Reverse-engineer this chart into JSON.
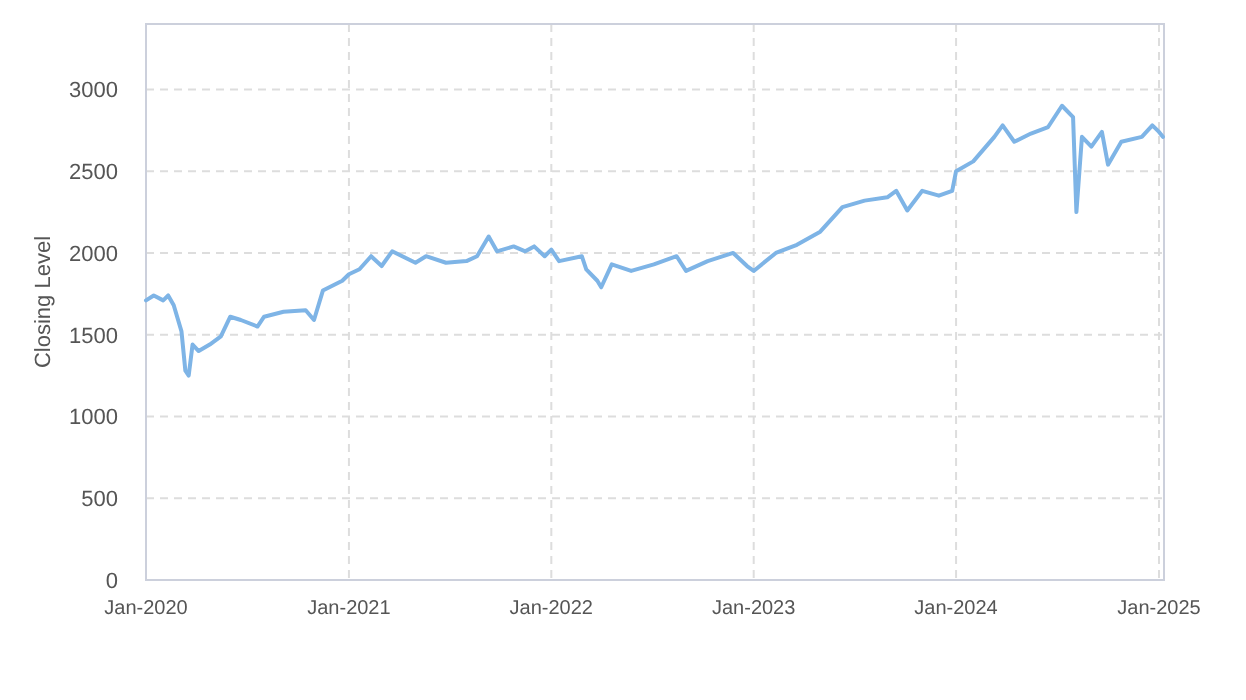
{
  "chart_data": {
    "type": "line",
    "ylabel": "Closing Level",
    "x": [
      "2020-01-01",
      "2020-01-15",
      "2020-02-01",
      "2020-02-10",
      "2020-02-20",
      "2020-03-05",
      "2020-03-12",
      "2020-03-18",
      "2020-03-25",
      "2020-04-05",
      "2020-04-25",
      "2020-05-15",
      "2020-06-01",
      "2020-06-20",
      "2020-07-20",
      "2020-08-01",
      "2020-09-05",
      "2020-10-15",
      "2020-10-30",
      "2020-11-15",
      "2020-12-20",
      "2021-01-01",
      "2021-01-20",
      "2021-02-10",
      "2021-03-01",
      "2021-03-20",
      "2021-05-01",
      "2021-05-20",
      "2021-06-25",
      "2021-08-01",
      "2021-08-20",
      "2021-09-10",
      "2021-09-25",
      "2021-10-25",
      "2021-11-15",
      "2021-12-01",
      "2021-12-20",
      "2022-01-01",
      "2022-01-15",
      "2022-02-25",
      "2022-03-05",
      "2022-03-25",
      "2022-04-01",
      "2022-04-20",
      "2022-05-25",
      "2022-07-05",
      "2022-08-15",
      "2022-09-01",
      "2022-10-10",
      "2022-11-25",
      "2022-12-20",
      "2023-01-01",
      "2023-02-10",
      "2023-03-20",
      "2023-05-01",
      "2023-06-10",
      "2023-07-20",
      "2023-08-30",
      "2023-09-15",
      "2023-10-05",
      "2023-11-01",
      "2023-12-01",
      "2023-12-25",
      "2024-01-01",
      "2024-02-01",
      "2024-03-10",
      "2024-03-25",
      "2024-04-15",
      "2024-05-15",
      "2024-06-15",
      "2024-07-10",
      "2024-07-30",
      "2024-08-05",
      "2024-08-15",
      "2024-09-01",
      "2024-09-20",
      "2024-10-01",
      "2024-10-25",
      "2024-12-01",
      "2024-12-20",
      "2025-01-01",
      "2025-01-08"
    ],
    "series": [
      {
        "color": "#7eb4e6",
        "values": [
          1710,
          1740,
          1710,
          1740,
          1680,
          1520,
          1280,
          1250,
          1440,
          1400,
          1440,
          1490,
          1610,
          1590,
          1550,
          1610,
          1640,
          1650,
          1590,
          1770,
          1830,
          1870,
          1900,
          1980,
          1920,
          2010,
          1940,
          1980,
          1940,
          1950,
          1980,
          2100,
          2010,
          2040,
          2010,
          2040,
          1980,
          2020,
          1950,
          1980,
          1900,
          1830,
          1790,
          1930,
          1890,
          1930,
          1980,
          1890,
          1950,
          2000,
          1920,
          1890,
          2000,
          2050,
          2130,
          2280,
          2320,
          2340,
          2380,
          2260,
          2380,
          2350,
          2380,
          2500,
          2560,
          2710,
          2780,
          2680,
          2730,
          2770,
          2900,
          2830,
          2250,
          2710,
          2650,
          2740,
          2540,
          2680,
          2710,
          2780,
          2740,
          2710
        ]
      }
    ],
    "xlim": [
      "2020-01-01",
      "2025-01-10"
    ],
    "xticks": [
      {
        "value": "2020-01-01",
        "label": "Jan-2020"
      },
      {
        "value": "2021-01-01",
        "label": "Jan-2021"
      },
      {
        "value": "2022-01-01",
        "label": "Jan-2022"
      },
      {
        "value": "2023-01-01",
        "label": "Jan-2023"
      },
      {
        "value": "2024-01-01",
        "label": "Jan-2024"
      },
      {
        "value": "2025-01-01",
        "label": "Jan-2025"
      }
    ],
    "ylim": [
      0,
      3400
    ],
    "yticks": [
      0,
      500,
      1000,
      1500,
      2000,
      2500,
      3000
    ],
    "grid": true,
    "marker": "none",
    "line_style": "solid"
  }
}
